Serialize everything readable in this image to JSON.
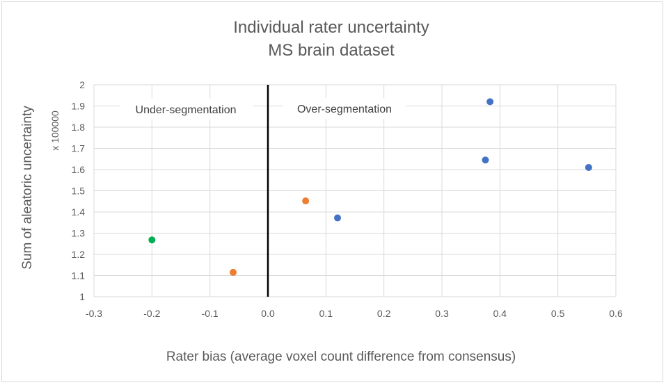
{
  "chart_data": {
    "type": "scatter",
    "title": "Individual rater uncertainty",
    "subtitle": "MS brain dataset",
    "xlabel": "Rater bias (average voxel count difference from consensus)",
    "ylabel": "Sum of aleatoric uncertainty",
    "y_unit_label": "x 100000",
    "xlim": [
      -0.3,
      0.6
    ],
    "ylim": [
      1,
      2
    ],
    "x_ticks": [
      -0.3,
      -0.2,
      -0.1,
      0.0,
      0.1,
      0.2,
      0.3,
      0.4,
      0.5,
      0.6
    ],
    "x_tick_labels": [
      "-0.3",
      "-0.2",
      "-0.1",
      "0.0",
      "0.1",
      "0.2",
      "0.3",
      "0.4",
      "0.5",
      "0.6"
    ],
    "y_ticks": [
      1,
      1.1,
      1.2,
      1.3,
      1.4,
      1.5,
      1.6,
      1.7,
      1.8,
      1.9,
      2
    ],
    "y_tick_labels": [
      "1",
      "1.1",
      "1.2",
      "1.3",
      "1.4",
      "1.5",
      "1.6",
      "1.7",
      "1.8",
      "1.9",
      "2"
    ],
    "grid": true,
    "divider_x": 0.0,
    "annotations": {
      "left": "Under-segmentation",
      "right": "Over-segmentation"
    },
    "points": [
      {
        "x": -0.2,
        "y": 1.268,
        "color": "#00b050"
      },
      {
        "x": -0.06,
        "y": 1.115,
        "color": "#ed7d31"
      },
      {
        "x": 0.065,
        "y": 1.452,
        "color": "#ed7d31"
      },
      {
        "x": 0.12,
        "y": 1.372,
        "color": "#4472c4"
      },
      {
        "x": 0.375,
        "y": 1.645,
        "color": "#4472c4"
      },
      {
        "x": 0.383,
        "y": 1.92,
        "color": "#4472c4"
      },
      {
        "x": 0.553,
        "y": 1.61,
        "color": "#4472c4"
      }
    ]
  },
  "colors": {
    "gridline": "#d9d9d9",
    "divider": "#000000",
    "text": "#595959"
  }
}
